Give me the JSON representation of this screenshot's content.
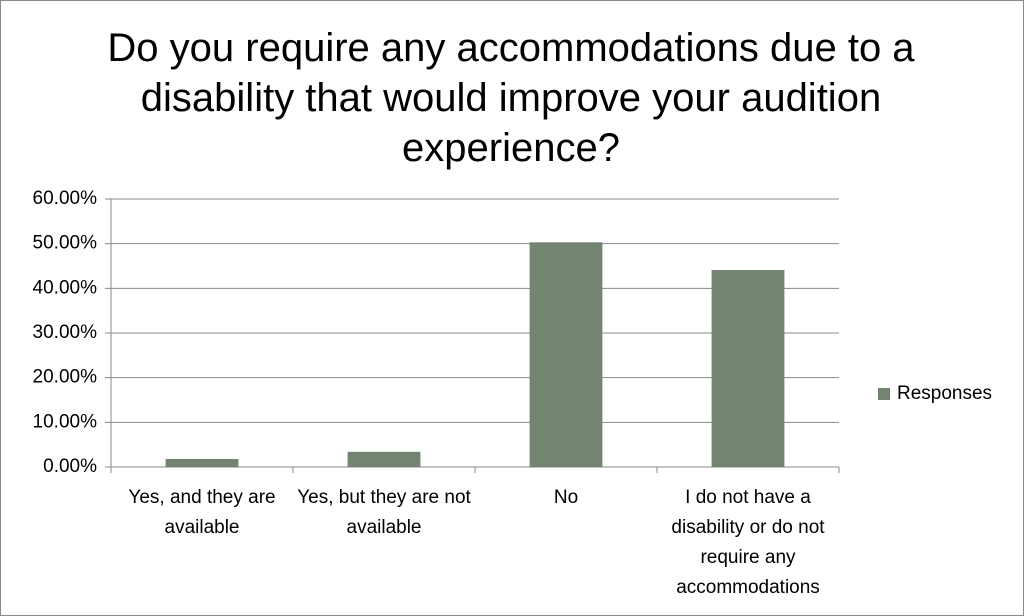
{
  "chart_data": {
    "type": "bar",
    "title": "Do you require any accommodations due to a disability that would improve your audition experience?",
    "categories": [
      "Yes, and they are available",
      "Yes, but they are not available",
      "No",
      "I do not have a disability or do not require any accommodations"
    ],
    "series": [
      {
        "name": "Responses",
        "color": "#738471",
        "values": [
          1.8,
          3.4,
          50.3,
          44.1
        ]
      }
    ],
    "ylim": [
      0,
      60
    ],
    "yticks": [
      {
        "value": 0,
        "label": "0.00%"
      },
      {
        "value": 10,
        "label": "10.00%"
      },
      {
        "value": 20,
        "label": "20.00%"
      },
      {
        "value": 30,
        "label": "30.00%"
      },
      {
        "value": 40,
        "label": "40.00%"
      },
      {
        "value": 50,
        "label": "50.00%"
      },
      {
        "value": 60,
        "label": "60.00%"
      }
    ],
    "grid": true,
    "legend": "right"
  }
}
